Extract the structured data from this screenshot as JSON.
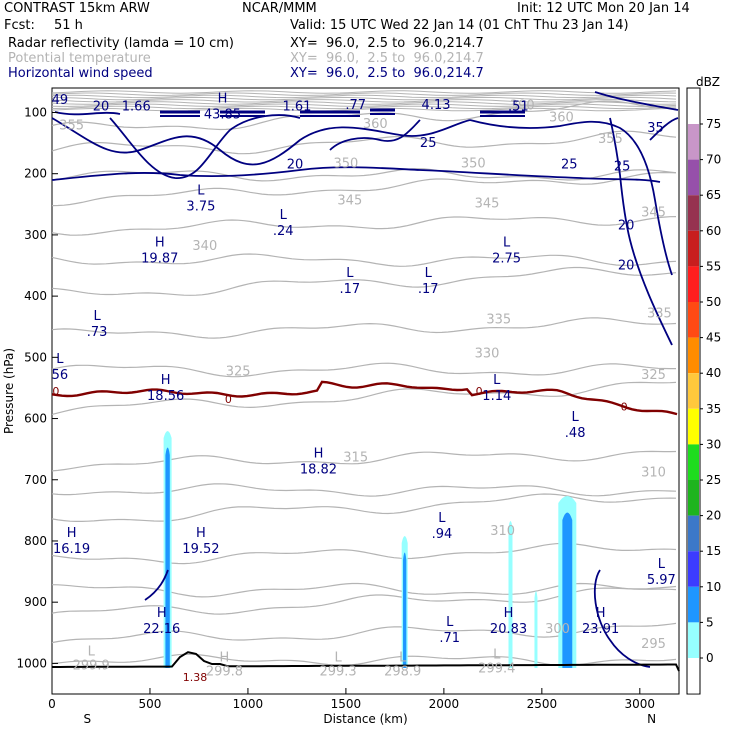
{
  "header": {
    "model": "CONTRAST 15km ARW",
    "org": "NCAR/MMM",
    "init": "Init: 12 UTC Mon 20 Jan 14",
    "fcst_label": "Fcst:",
    "fcst_value": "51 h",
    "valid": "Valid: 15 UTC Wed 22 Jan 14 (01 ChT Thu 23 Jan 14)",
    "fields": [
      {
        "name": "Radar reflectivity (lamda = 10 cm)",
        "xy": "XY=  96.0,  2.5 to  96.0,214.7",
        "color": "#000000"
      },
      {
        "name": "Potential temperature",
        "xy": "XY=  96.0,  2.5 to  96.0,214.7",
        "color": "#b4b4b4"
      },
      {
        "name": "Horizontal wind speed",
        "xy": "XY=  96.0,  2.5 to  96.0,214.7",
        "color": "#000080"
      }
    ]
  },
  "chart_data": {
    "type": "contour cross-section",
    "xlabel": "Distance (km)",
    "ylabel": "Pressure (hPa)",
    "x_ticks": [
      0,
      500,
      1000,
      1500,
      2000,
      2500,
      3000
    ],
    "xlim": [
      0,
      3200
    ],
    "y_ticks": [
      100,
      200,
      300,
      400,
      500,
      600,
      700,
      800,
      900,
      1000
    ],
    "ylim": [
      1050,
      60
    ],
    "x_end_labels": {
      "left": "S",
      "right": "N"
    },
    "colorbar": {
      "unit": "dBZ",
      "levels": [
        75,
        70,
        65,
        60,
        55,
        50,
        45,
        40,
        35,
        30,
        25,
        20,
        15,
        10,
        5,
        0
      ],
      "colors": [
        "#c896c8",
        "#9650aa",
        "#963250",
        "#c81e1e",
        "#ff1e1e",
        "#ff4a14",
        "#ff8c00",
        "#ffc83c",
        "#ffff00",
        "#1edc1e",
        "#1eb41e",
        "#3c78c8",
        "#3c3cff",
        "#1e96ff",
        "#96ffff",
        "#ffffff"
      ]
    },
    "theta_labels": [
      {
        "x": 2400,
        "p": 95,
        "text": "390"
      },
      {
        "x": 100,
        "p": 128,
        "text": "355"
      },
      {
        "x": 2850,
        "p": 150,
        "text": "355"
      },
      {
        "x": 1650,
        "p": 125,
        "text": "360"
      },
      {
        "x": 2600,
        "p": 115,
        "text": "360"
      },
      {
        "x": 1500,
        "p": 190,
        "text": "350"
      },
      {
        "x": 2150,
        "p": 190,
        "text": "350"
      },
      {
        "x": 1520,
        "p": 250,
        "text": "345"
      },
      {
        "x": 2220,
        "p": 255,
        "text": "345"
      },
      {
        "x": 3070,
        "p": 270,
        "text": "345"
      },
      {
        "x": 780,
        "p": 325,
        "text": "340"
      },
      {
        "x": 2280,
        "p": 445,
        "text": "335"
      },
      {
        "x": 3100,
        "p": 435,
        "text": "335"
      },
      {
        "x": 2220,
        "p": 500,
        "text": "330"
      },
      {
        "x": 950,
        "p": 530,
        "text": "325"
      },
      {
        "x": 3070,
        "p": 535,
        "text": "325"
      },
      {
        "x": 1550,
        "p": 670,
        "text": "315"
      },
      {
        "x": 3070,
        "p": 695,
        "text": "310"
      },
      {
        "x": 2300,
        "p": 790,
        "text": "310"
      },
      {
        "x": 2580,
        "p": 950,
        "text": "300"
      },
      {
        "x": 3070,
        "p": 975,
        "text": "295"
      }
    ],
    "wind_labels": [
      {
        "x": 40,
        "p": 80,
        "text": "49"
      },
      {
        "x": 250,
        "p": 90,
        "text": "20"
      },
      {
        "x": 430,
        "p": 90,
        "text": "1.66"
      },
      {
        "x": 1250,
        "p": 90,
        "text": "1.61"
      },
      {
        "x": 1550,
        "p": 88,
        "text": ".77"
      },
      {
        "x": 1960,
        "p": 88,
        "text": "4.13"
      },
      {
        "x": 2380,
        "p": 90,
        "text": ".51"
      },
      {
        "x": 1920,
        "p": 150,
        "text": "25"
      },
      {
        "x": 3080,
        "p": 125,
        "text": "35"
      },
      {
        "x": 2640,
        "p": 185,
        "text": "25"
      },
      {
        "x": 2910,
        "p": 188,
        "text": "25"
      },
      {
        "x": 1240,
        "p": 185,
        "text": "20"
      },
      {
        "x": 2930,
        "p": 285,
        "text": "20"
      },
      {
        "x": 2930,
        "p": 350,
        "text": "20"
      }
    ],
    "extrema": [
      {
        "x": 870,
        "p": 110,
        "mark": "H",
        "value": "43.85"
      },
      {
        "x": 760,
        "p": 260,
        "mark": "L",
        "value": "3.75"
      },
      {
        "x": 1180,
        "p": 300,
        "mark": "L",
        "value": ".24"
      },
      {
        "x": 550,
        "p": 345,
        "mark": "H",
        "value": "19.87"
      },
      {
        "x": 1520,
        "p": 395,
        "mark": "L",
        "value": ".17"
      },
      {
        "x": 1920,
        "p": 395,
        "mark": "L",
        "value": ".17"
      },
      {
        "x": 2320,
        "p": 345,
        "mark": "L",
        "value": "2.75"
      },
      {
        "x": 230,
        "p": 465,
        "mark": "L",
        "value": ".73"
      },
      {
        "x": 40,
        "p": 535,
        "mark": "L",
        "value": "56"
      },
      {
        "x": 580,
        "p": 570,
        "mark": "H",
        "value": "18.56"
      },
      {
        "x": 2270,
        "p": 570,
        "mark": "L",
        "value": "1.14"
      },
      {
        "x": 2670,
        "p": 630,
        "mark": "L",
        "value": ".48"
      },
      {
        "x": 1360,
        "p": 690,
        "mark": "H",
        "value": "18.82"
      },
      {
        "x": 1990,
        "p": 795,
        "mark": "L",
        "value": ".94"
      },
      {
        "x": 100,
        "p": 820,
        "mark": "H",
        "value": "16.19"
      },
      {
        "x": 760,
        "p": 820,
        "mark": "H",
        "value": "19.52"
      },
      {
        "x": 3110,
        "p": 870,
        "mark": "L",
        "value": "5.97"
      },
      {
        "x": 560,
        "p": 950,
        "mark": "H",
        "value": "22.16"
      },
      {
        "x": 2030,
        "p": 965,
        "mark": "L",
        "value": ".71"
      },
      {
        "x": 2330,
        "p": 950,
        "mark": "H",
        "value": "20.83"
      },
      {
        "x": 2800,
        "p": 950,
        "mark": "H",
        "value": "23.91"
      }
    ],
    "theta_extrema": [
      {
        "x": 200,
        "p": 1010,
        "mark": "L",
        "value": "299.9"
      },
      {
        "x": 880,
        "p": 1020,
        "mark": "H",
        "value": "299.8"
      },
      {
        "x": 1460,
        "p": 1020,
        "mark": "L",
        "value": "299.3"
      },
      {
        "x": 1790,
        "p": 1020,
        "mark": "L",
        "value": "298.9"
      },
      {
        "x": 2270,
        "p": 1015,
        "mark": "L",
        "value": "299.4"
      }
    ],
    "zero_labels": [
      {
        "x": 20,
        "p": 555,
        "text": "0"
      },
      {
        "x": 900,
        "p": 568,
        "text": "0"
      },
      {
        "x": 2180,
        "p": 555,
        "text": "0"
      },
      {
        "x": 2920,
        "p": 580,
        "text": "0"
      },
      {
        "x": 730,
        "p": 1022,
        "text": "1.38"
      }
    ]
  }
}
